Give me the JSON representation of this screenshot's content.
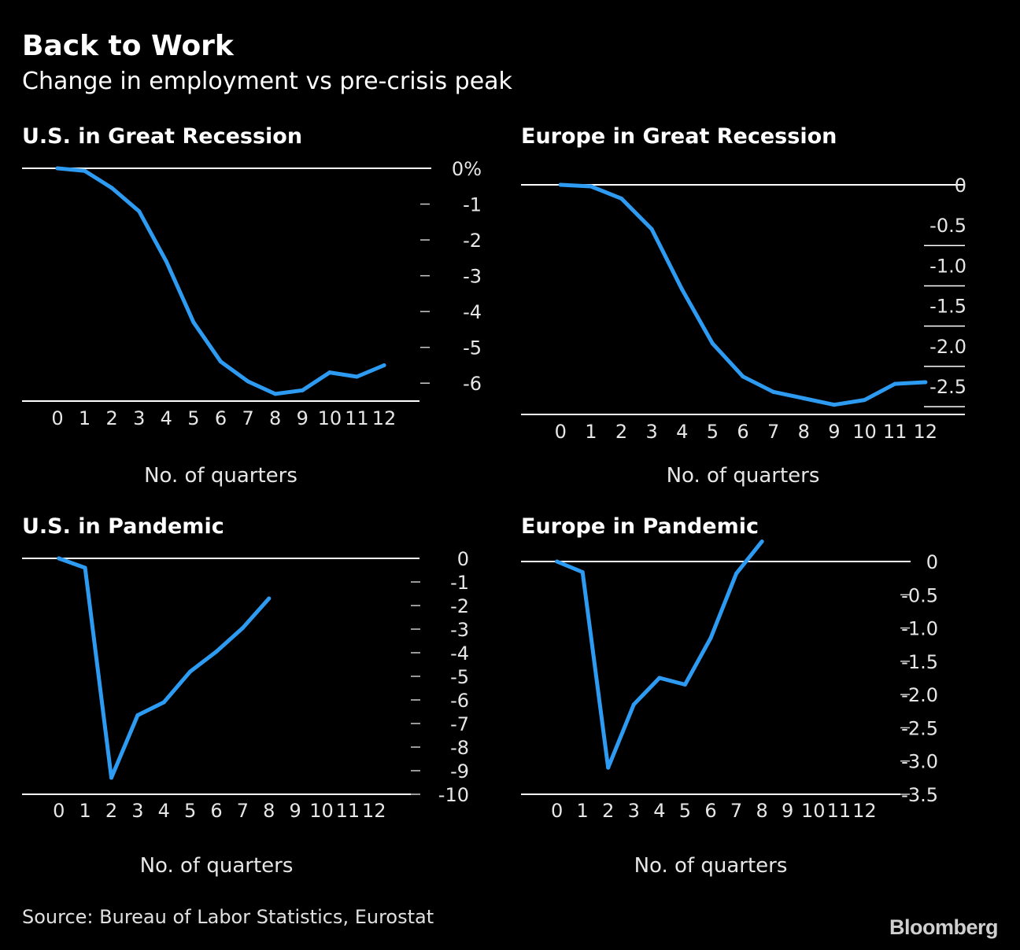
{
  "title": "Back to Work",
  "subtitle": "Change in employment vs pre-crisis peak",
  "source": "Source: Bureau of Labor Statistics, Eurostat",
  "logo": "Bloomberg",
  "colors": {
    "background": "#000000",
    "line": "#2e9bf2",
    "axis": "#ffffff",
    "text": "#e6e6e6"
  },
  "chart_data": [
    {
      "type": "line",
      "title": "U.S. in Great Recession",
      "xlabel": "No. of quarters",
      "x": [
        0,
        1,
        2,
        3,
        4,
        5,
        6,
        7,
        8,
        9,
        10,
        11,
        12
      ],
      "xticks": [
        "0",
        "1",
        "2",
        "3",
        "4",
        "5",
        "6",
        "7",
        "8",
        "9",
        "10",
        "11",
        "12"
      ],
      "xlim": [
        -1.3,
        13.3
      ],
      "ylim": [
        -6.5,
        0
      ],
      "yticks": [
        {
          "value": 0,
          "label": "0%"
        },
        {
          "value": -1,
          "label": "-1"
        },
        {
          "value": -2,
          "label": "-2"
        },
        {
          "value": -3,
          "label": "-3"
        },
        {
          "value": -4,
          "label": "-4"
        },
        {
          "value": -5,
          "label": "-5"
        },
        {
          "value": -6,
          "label": "-6"
        }
      ],
      "series": [
        {
          "values": [
            0,
            -0.07,
            -0.55,
            -1.2,
            -2.6,
            -4.3,
            -5.4,
            -5.95,
            -6.3,
            -6.2,
            -5.7,
            -5.82,
            -5.5
          ]
        }
      ]
    },
    {
      "type": "line",
      "title": "Europe in Great Recession",
      "xlabel": "No. of quarters",
      "x": [
        0,
        1,
        2,
        3,
        4,
        5,
        6,
        7,
        8,
        9,
        10,
        11,
        12
      ],
      "xticks": [
        "0",
        "1",
        "2",
        "3",
        "4",
        "5",
        "6",
        "7",
        "8",
        "9",
        "10",
        "11",
        "12"
      ],
      "xlim": [
        -1.3,
        13.3
      ],
      "ylim": [
        -2.85,
        0
      ],
      "yticks": [
        {
          "value": 0,
          "label": "0"
        },
        {
          "value": -0.5,
          "label": "-0.5"
        },
        {
          "value": -1.0,
          "label": "-1.0"
        },
        {
          "value": -1.5,
          "label": "-1.5"
        },
        {
          "value": -2.0,
          "label": "-2.0"
        },
        {
          "value": -2.5,
          "label": "-2.5"
        }
      ],
      "series": [
        {
          "values": [
            0,
            -0.02,
            -0.17,
            -0.55,
            -1.3,
            -1.97,
            -2.38,
            -2.57,
            -2.65,
            -2.73,
            -2.67,
            -2.47,
            -2.45
          ]
        }
      ]
    },
    {
      "type": "line",
      "title": "U.S. in Pandemic",
      "xlabel": "No. of quarters",
      "x": [
        0,
        1,
        2,
        3,
        4,
        5,
        6,
        7,
        8
      ],
      "xticks": [
        "0",
        "1",
        "2",
        "3",
        "4",
        "5",
        "6",
        "7",
        "8",
        "9",
        "10",
        "11",
        "12"
      ],
      "xlim": [
        -1.4,
        13.4
      ],
      "ylim": [
        -10,
        0
      ],
      "yticks": [
        {
          "value": 0,
          "label": "0"
        },
        {
          "value": -1,
          "label": "-1"
        },
        {
          "value": -2,
          "label": "-2"
        },
        {
          "value": -3,
          "label": "-3"
        },
        {
          "value": -4,
          "label": "-4"
        },
        {
          "value": -5,
          "label": "-5"
        },
        {
          "value": -6,
          "label": "-6"
        },
        {
          "value": -7,
          "label": "-7"
        },
        {
          "value": -8,
          "label": "-8"
        },
        {
          "value": -9,
          "label": "-9"
        },
        {
          "value": -10,
          "label": "-10"
        }
      ],
      "series": [
        {
          "values": [
            0,
            -0.4,
            -9.3,
            -6.65,
            -6.1,
            -4.8,
            -3.95,
            -2.95,
            -1.7
          ]
        }
      ]
    },
    {
      "type": "line",
      "title": "Europe in Pandemic",
      "xlabel": "No. of quarters",
      "x": [
        0,
        1,
        2,
        3,
        4,
        5,
        6,
        7,
        8
      ],
      "xticks": [
        "0",
        "1",
        "2",
        "3",
        "4",
        "5",
        "6",
        "7",
        "8",
        "9",
        "10",
        "11",
        "12"
      ],
      "xlim": [
        -1.4,
        13.4
      ],
      "ylim": [
        -3.5,
        0
      ],
      "yticks": [
        {
          "value": 0,
          "label": "0"
        },
        {
          "value": -0.5,
          "label": "-0.5"
        },
        {
          "value": -1.0,
          "label": "-1.0"
        },
        {
          "value": -1.5,
          "label": "-1.5"
        },
        {
          "value": -2.0,
          "label": "-2.0"
        },
        {
          "value": -2.5,
          "label": "-2.5"
        },
        {
          "value": -3.0,
          "label": "-3.0"
        },
        {
          "value": -3.5,
          "label": "-3.5"
        }
      ],
      "series": [
        {
          "values": [
            0,
            -0.16,
            -3.1,
            -2.15,
            -1.75,
            -1.85,
            -1.15,
            -0.18,
            0.3
          ]
        }
      ]
    }
  ]
}
